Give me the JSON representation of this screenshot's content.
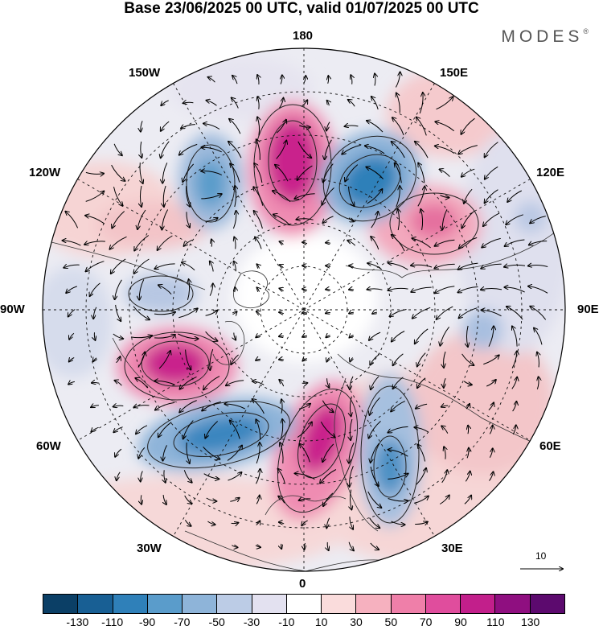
{
  "title": "Base 23/06/2025 00 UTC, valid 01/07/2025 00 UTC",
  "brand": "MODES",
  "brand_mark": "®",
  "longitude_labels": {
    "n180": "180",
    "e150": "150E",
    "e120": "120E",
    "e90": "90E",
    "e60": "60E",
    "e30": "30E",
    "p0": "0",
    "w30": "30W",
    "w60": "60W",
    "w90": "90W",
    "w120": "120W",
    "w150": "150W"
  },
  "reference_vector": {
    "value": "10"
  },
  "colorbar": {
    "colors": [
      "#0b3f66",
      "#185f94",
      "#2f80b9",
      "#5a9ccb",
      "#8eb4d9",
      "#bccce6",
      "#e3e1f0",
      "#ffffff",
      "#fadcdc",
      "#f6b1bf",
      "#ef7fa9",
      "#e04d9d",
      "#c21f8b",
      "#8f0f80",
      "#5c0a6e"
    ],
    "ticks": [
      "-130",
      "-110",
      "-90",
      "-70",
      "-50",
      "-30",
      "-10",
      "10",
      "30",
      "50",
      "70",
      "90",
      "110",
      "130"
    ]
  }
}
